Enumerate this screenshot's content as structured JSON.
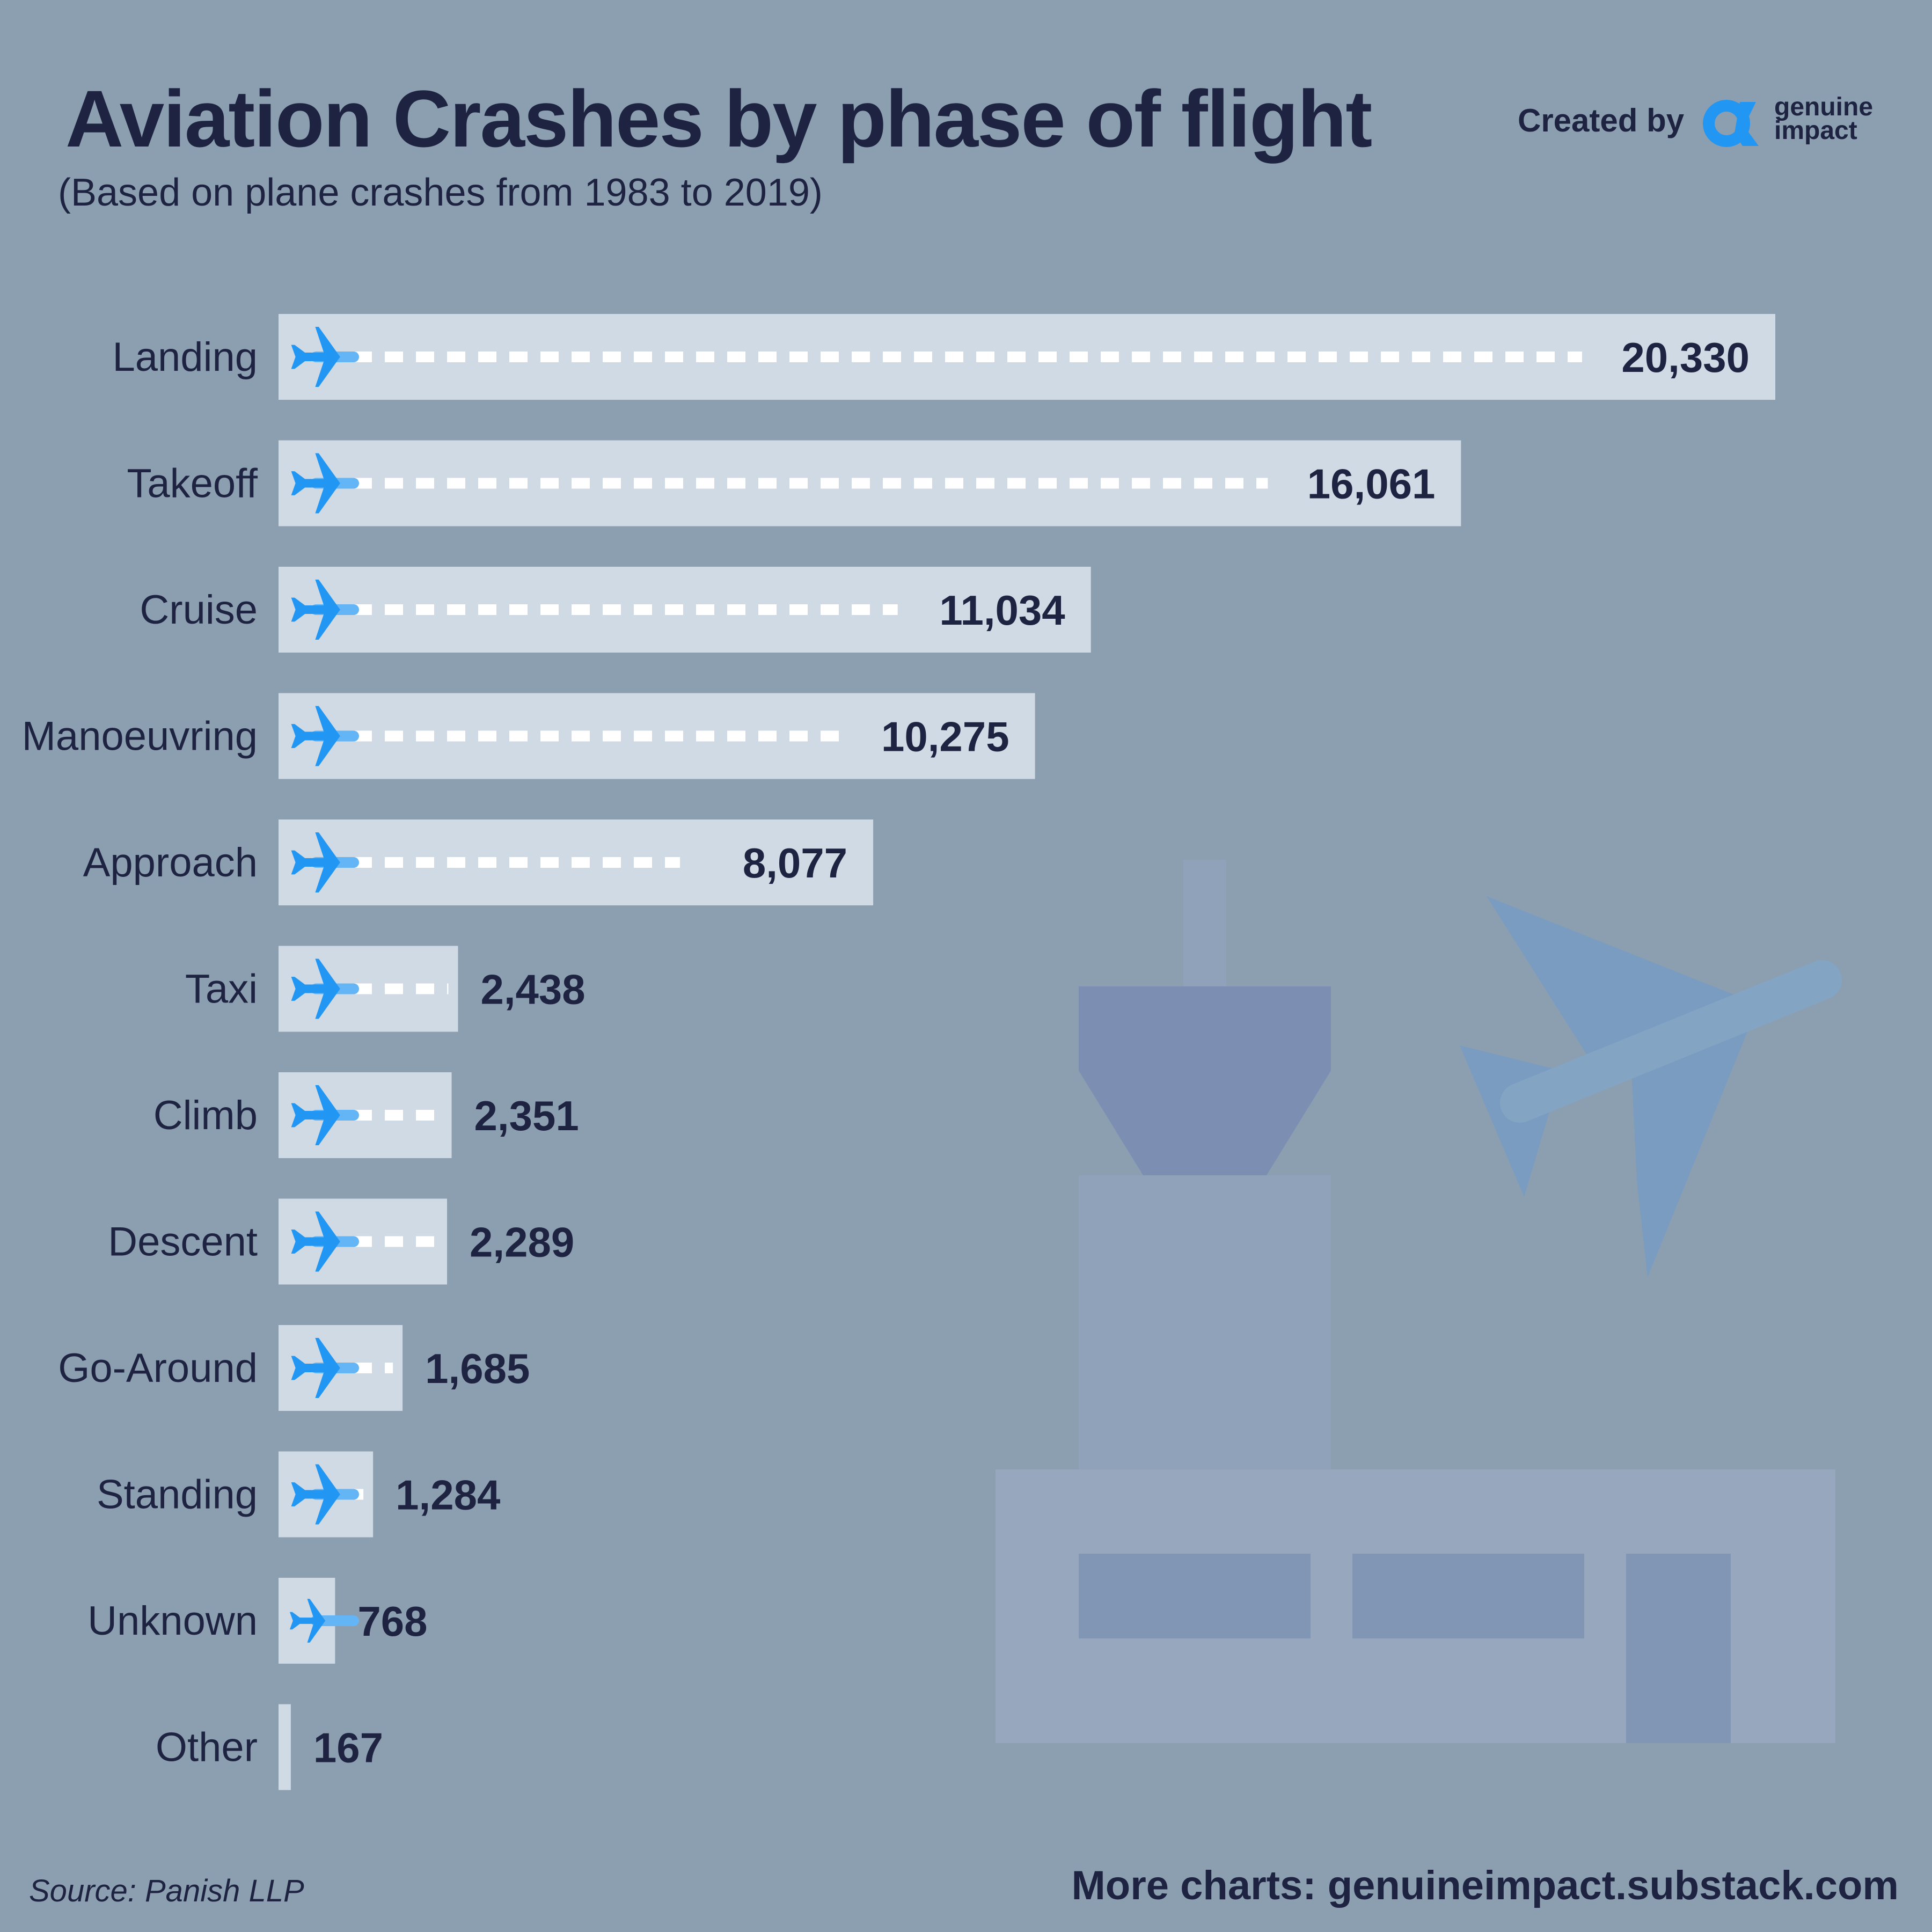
{
  "header": {
    "title": "Aviation Crashes by phase of flight",
    "subtitle": "(Based on plane crashes from 1983 to 2019)",
    "created_by": "Created by",
    "brand_line1": "genuine",
    "brand_line2": "impact"
  },
  "footer": {
    "source": "Source: Panish LLP",
    "more_charts": "More charts: genuineimpact.substack.com"
  },
  "colors": {
    "background": "#8b9fb0",
    "bar": "#d0dae4",
    "plane": "#2196f3",
    "text": "#1d2340",
    "dash": "#ffffff"
  },
  "icons": [
    "plane-icon",
    "genuine-impact-logo-icon",
    "control-tower-illustration"
  ],
  "chart_data": {
    "type": "bar",
    "orientation": "horizontal",
    "title": "Aviation Crashes by phase of flight",
    "subtitle": "(Based on plane crashes from 1983 to 2019)",
    "categories": [
      "Landing",
      "Takeoff",
      "Cruise",
      "Manoeuvring",
      "Approach",
      "Taxi",
      "Climb",
      "Descent",
      "Go-Around",
      "Standing",
      "Unknown",
      "Other"
    ],
    "values": [
      20330,
      16061,
      11034,
      10275,
      8077,
      2438,
      2351,
      2289,
      1685,
      1284,
      768,
      167
    ],
    "value_labels": [
      "20,330",
      "16,061",
      "11,034",
      "10,275",
      "8,077",
      "2,438",
      "2,351",
      "2,289",
      "1,685",
      "1,284",
      "768",
      "167"
    ],
    "xlim": [
      0,
      20330
    ],
    "grid": false,
    "legend": "none"
  }
}
